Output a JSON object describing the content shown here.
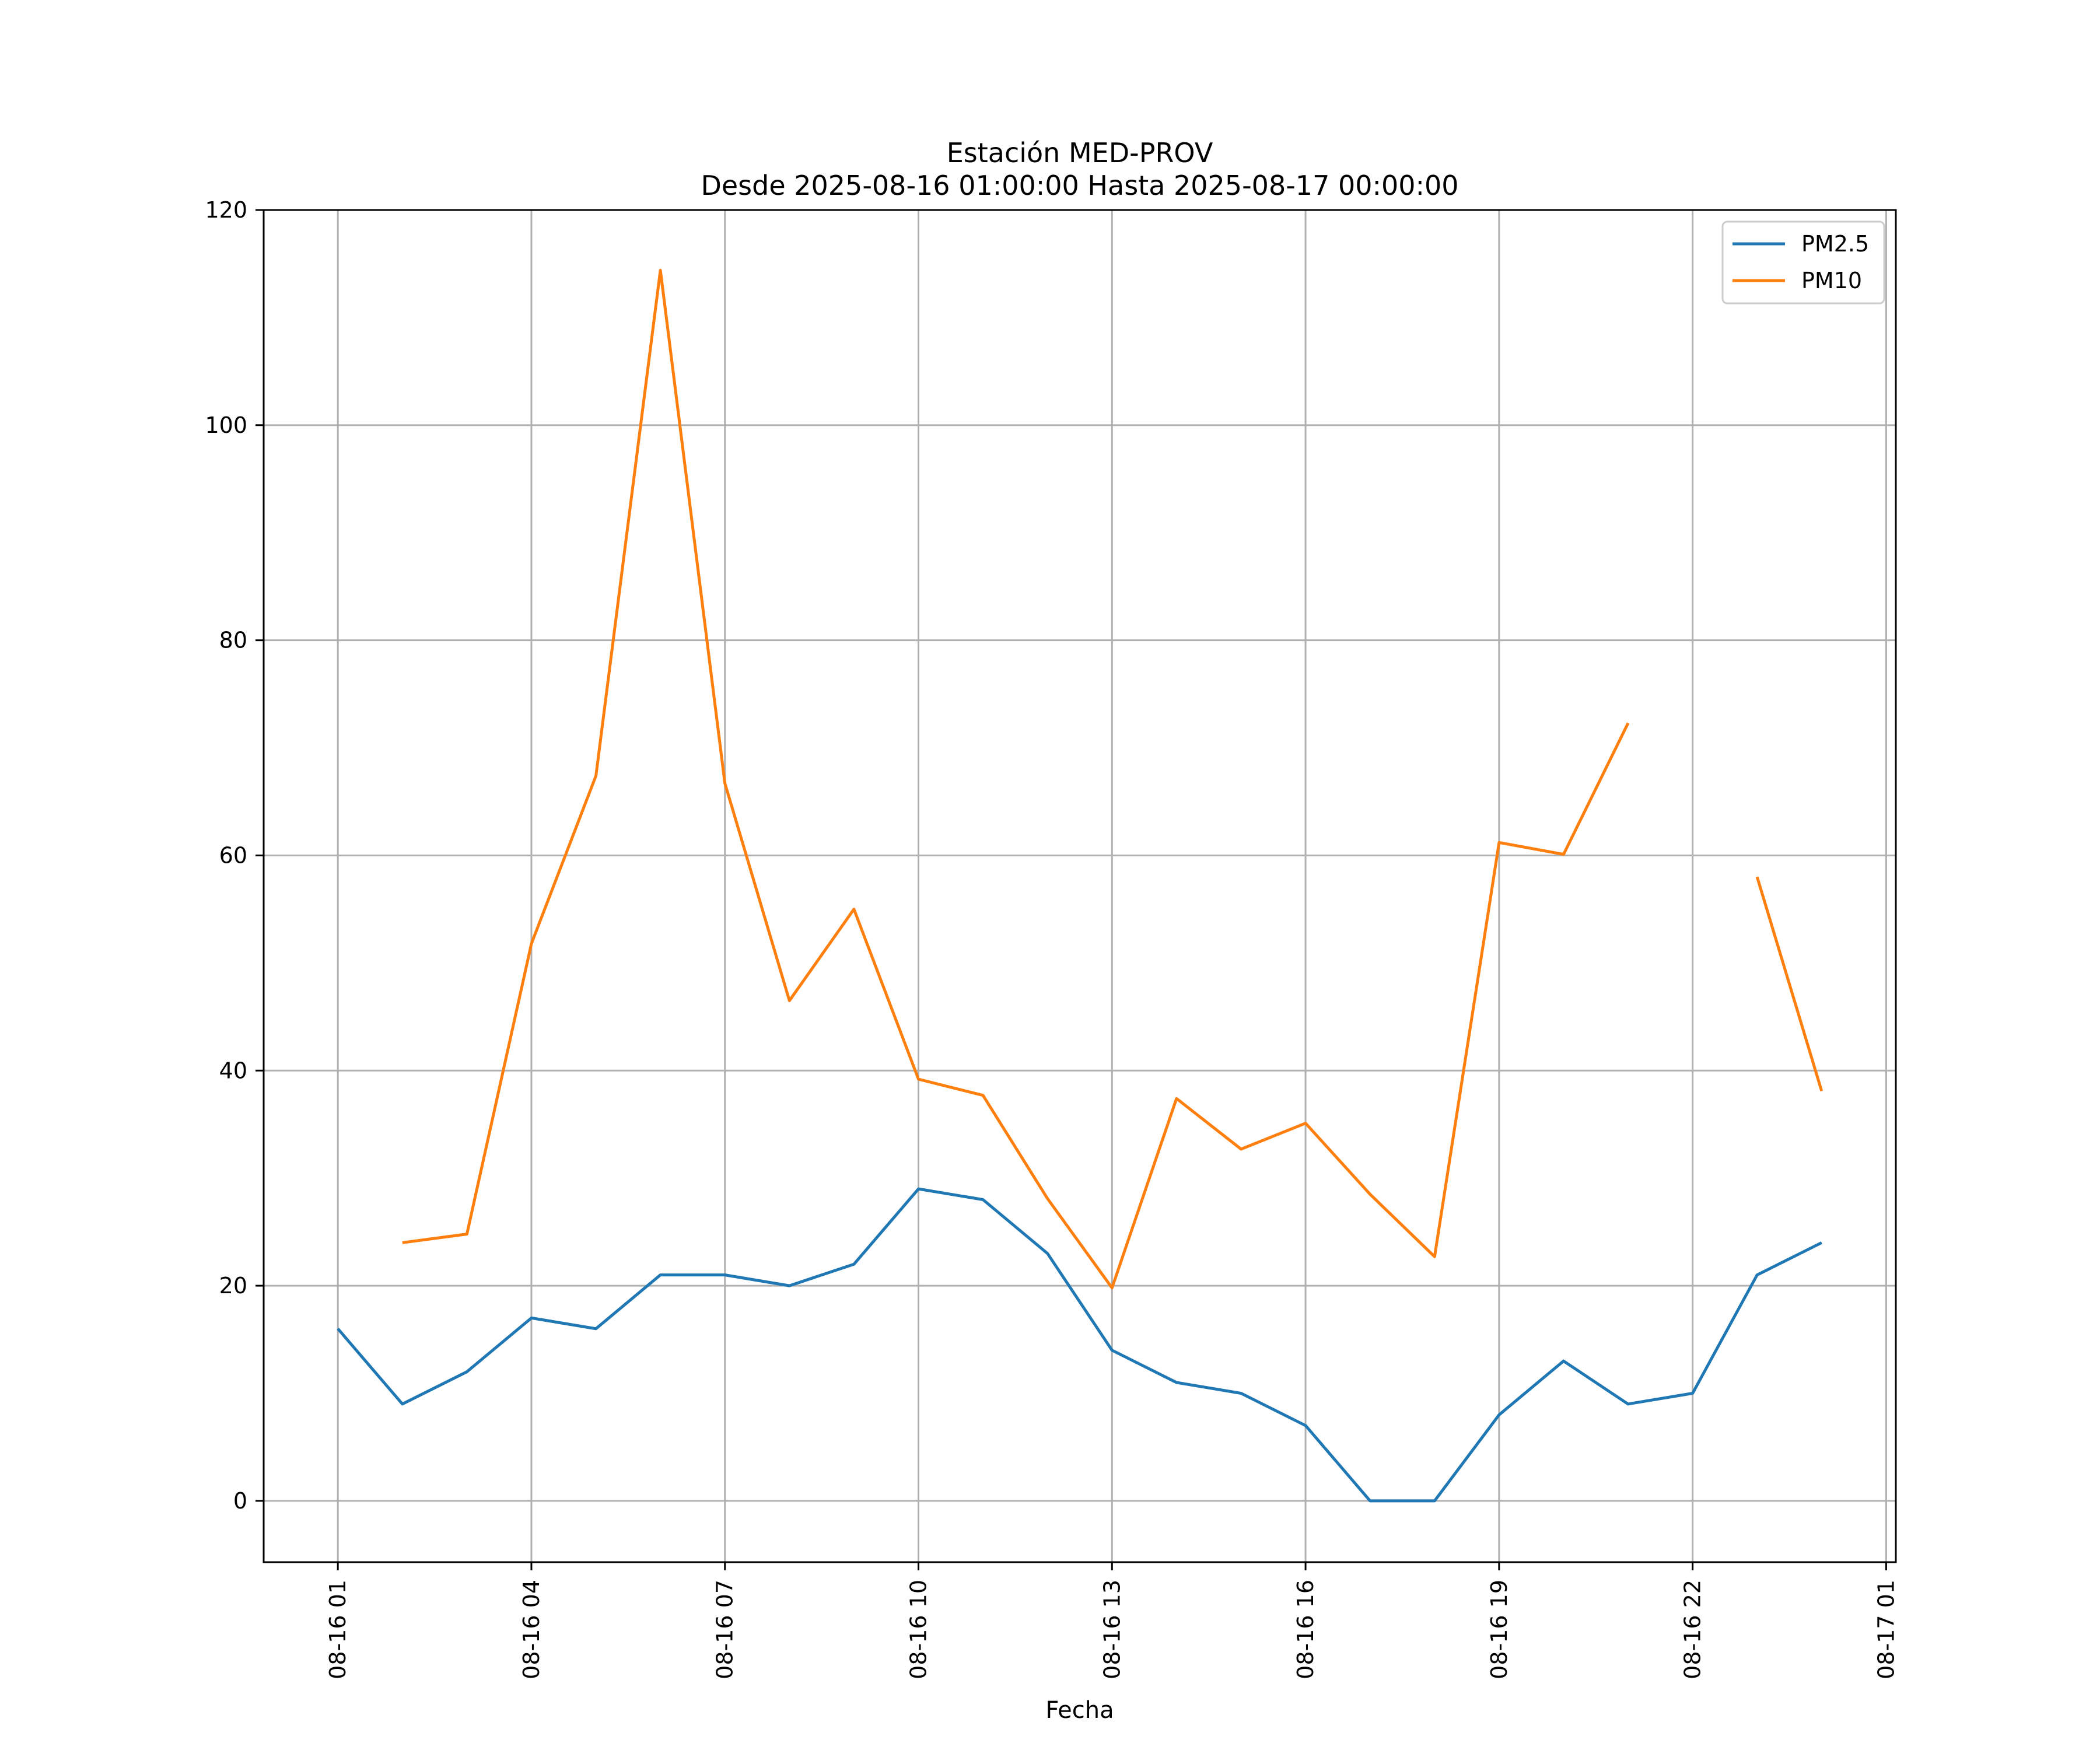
{
  "chart_data": {
    "type": "line",
    "title": [
      "Estación MED-PROV",
      "Desde 2025-08-16 01:00:00 Hasta 2025-08-17 00:00:00"
    ],
    "xlabel": "Fecha",
    "ylabel": "",
    "x": [
      "08-16 01",
      "08-16 02",
      "08-16 03",
      "08-16 04",
      "08-16 05",
      "08-16 06",
      "08-16 07",
      "08-16 08",
      "08-16 09",
      "08-16 10",
      "08-16 11",
      "08-16 12",
      "08-16 13",
      "08-16 14",
      "08-16 15",
      "08-16 16",
      "08-16 17",
      "08-16 18",
      "08-16 19",
      "08-16 20",
      "08-16 21",
      "08-16 22",
      "08-16 23",
      "08-17 00"
    ],
    "x_hours": [
      1,
      2,
      3,
      4,
      5,
      6,
      7,
      8,
      9,
      10,
      11,
      12,
      13,
      14,
      15,
      16,
      17,
      18,
      19,
      20,
      21,
      22,
      23,
      24
    ],
    "xlim_hours": [
      -0.15,
      25.15
    ],
    "x_ticks": [
      {
        "hour": 1,
        "label": "08-16 01"
      },
      {
        "hour": 4,
        "label": "08-16 04"
      },
      {
        "hour": 7,
        "label": "08-16 07"
      },
      {
        "hour": 10,
        "label": "08-16 10"
      },
      {
        "hour": 13,
        "label": "08-16 13"
      },
      {
        "hour": 16,
        "label": "08-16 16"
      },
      {
        "hour": 19,
        "label": "08-16 19"
      },
      {
        "hour": 22,
        "label": "08-16 22"
      },
      {
        "hour": 25,
        "label": "08-17 01"
      }
    ],
    "ylim": [
      -5.7,
      120
    ],
    "y_ticks": [
      0,
      20,
      40,
      60,
      80,
      100,
      120
    ],
    "grid": true,
    "legend_position": "top-right",
    "series": [
      {
        "name": "PM2.5",
        "color": "#1f77b4",
        "values": [
          16,
          9,
          12,
          17,
          16,
          21,
          21,
          20,
          22,
          29,
          28,
          23,
          14,
          11,
          10,
          7,
          0,
          0,
          8,
          13,
          9,
          10,
          21,
          24
        ]
      },
      {
        "name": "PM10",
        "color": "#ff7f0e",
        "values": [
          null,
          24,
          24.8,
          51.8,
          67.4,
          114.4,
          66.7,
          46.5,
          55,
          39.2,
          37.7,
          28.1,
          19.8,
          37.4,
          32.7,
          35.1,
          28.5,
          22.7,
          61.2,
          60.1,
          72.3,
          null,
          58,
          38.1
        ]
      }
    ]
  }
}
